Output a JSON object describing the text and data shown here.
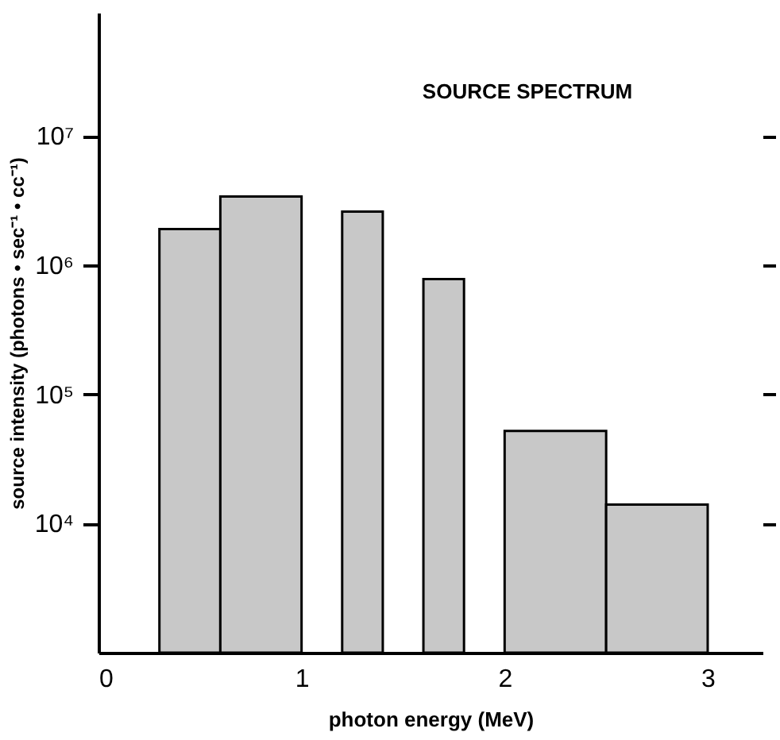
{
  "chart_data": {
    "type": "histogram",
    "title": "SOURCE SPECTRUM",
    "bins": [
      0.3,
      0.6,
      1.0,
      1.2,
      1.4,
      1.6,
      1.8,
      2.0,
      2.5,
      3.0
    ],
    "values": [
      1900000.0,
      3400000.0,
      null,
      2600000.0,
      null,
      780000.0,
      null,
      52000.0,
      14000.0
    ],
    "color": "#c8c8c8",
    "xlabel": "photon energy (MeV)",
    "ylabel": "source intensity (photons • sec⁻¹ • cc⁻¹)",
    "xlim": [
      0,
      3.27
    ],
    "xticks": [
      0,
      1,
      2,
      3
    ],
    "ylim": [
      1000,
      90000000.0
    ],
    "yticks": [
      {
        "value": 10000,
        "label": "10⁴"
      },
      {
        "value": 100000,
        "label": "10⁵"
      },
      {
        "value": 1000000,
        "label": "10⁶"
      },
      {
        "value": 10000000,
        "label": "10⁷"
      }
    ],
    "log": true,
    "grid": false
  }
}
